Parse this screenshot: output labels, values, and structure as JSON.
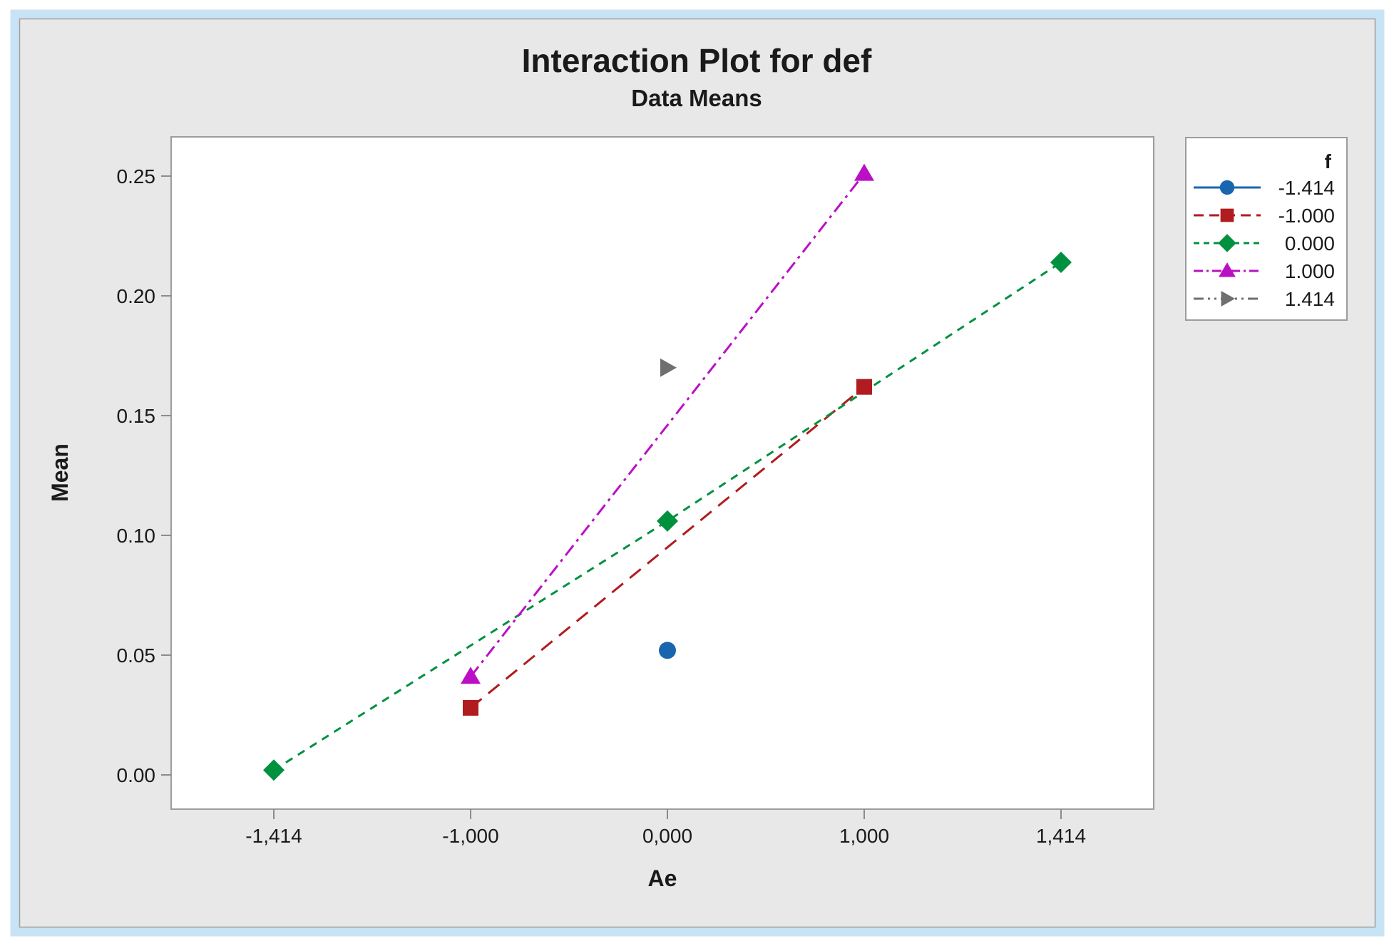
{
  "window": {
    "outer_bg": "#ffffff",
    "selection_border_color": "#c9e3f6",
    "graph_bg": "#e8e8e8",
    "graph_border_color": "#a0a0a0",
    "plot_bg": "#ffffff",
    "plot_border_color": "#9c9c9c",
    "tick_color": "#8c8c8c",
    "text_color": "#1a1a1a"
  },
  "chart_data": {
    "type": "line",
    "title": "Interaction Plot for def",
    "subtitle": "Data Means",
    "xlabel": "Ae",
    "ylabel": "Mean",
    "x_categories": [
      "-1,414",
      "-1,000",
      "0,000",
      "1,000",
      "1,414"
    ],
    "y_ticks": [
      "0.00",
      "0.05",
      "0.10",
      "0.15",
      "0.20",
      "0.25"
    ],
    "ylim": [
      -0.014,
      0.266
    ],
    "grid": "off",
    "legend": {
      "title": "f",
      "position": "outside-top-right"
    },
    "series": [
      {
        "name": "-1.414",
        "color": "#1a66ae",
        "marker": "circle",
        "dash": "none",
        "points": [
          {
            "x": "0,000",
            "y": 0.052
          }
        ]
      },
      {
        "name": "-1.000",
        "color": "#b01c1f",
        "marker": "square",
        "dash": "20 12",
        "points": [
          {
            "x": "-1,000",
            "y": 0.028
          },
          {
            "x": "1,000",
            "y": 0.162
          }
        ]
      },
      {
        "name": "0.000",
        "color": "#00913f",
        "marker": "diamond",
        "dash": "11 9",
        "points": [
          {
            "x": "-1,414",
            "y": 0.002
          },
          {
            "x": "0,000",
            "y": 0.106
          },
          {
            "x": "1,414",
            "y": 0.214
          }
        ]
      },
      {
        "name": "1.000",
        "color": "#bb0fc6",
        "marker": "triangle-up",
        "dash": "18 7 4 7",
        "points": [
          {
            "x": "-1,000",
            "y": 0.041
          },
          {
            "x": "1,000",
            "y": 0.251
          }
        ]
      },
      {
        "name": "1.414",
        "color": "#6f6f6f",
        "marker": "triangle-right",
        "dash": "20 8 4 8 4 8",
        "points": [
          {
            "x": "0,000",
            "y": 0.17
          }
        ]
      }
    ]
  }
}
